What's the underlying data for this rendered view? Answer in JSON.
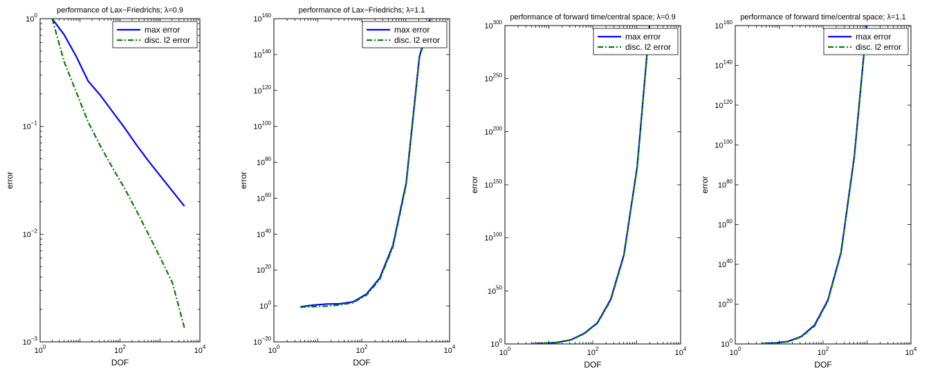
{
  "colors": {
    "max_error": "#0000ff",
    "l2_error": "#007f00",
    "axes": "#000000",
    "background": "#ffffff"
  },
  "chart_data": [
    {
      "type": "line",
      "title_prefix": "performance of Lax−Friedrichs; ",
      "title_suffix": "λ=0.9",
      "xlabel": "DOF",
      "ylabel": "error",
      "xscale": "log",
      "yscale": "log",
      "xlim": [
        1,
        10000
      ],
      "ylim_exp": [
        -3,
        0
      ],
      "x_ticks": [
        {
          "exp": 0,
          "base": "10",
          "sup": "0"
        },
        {
          "exp": 2,
          "base": "10",
          "sup": "2"
        },
        {
          "exp": 4,
          "base": "10",
          "sup": "4"
        }
      ],
      "y_ticks": [
        {
          "exp": -3,
          "base": "10",
          "sup": "−3"
        },
        {
          "exp": -2,
          "base": "10",
          "sup": "−2"
        },
        {
          "exp": -1,
          "base": "10",
          "sup": "−1"
        },
        {
          "exp": 0,
          "base": "10",
          "sup": "0"
        }
      ],
      "legend": "top-right",
      "grid": false,
      "series": [
        {
          "name": "max error",
          "style": "solid",
          "x": [
            2,
            4,
            8,
            16,
            32,
            64,
            128,
            256,
            512,
            1024,
            2048,
            4096
          ],
          "y_exp": [
            0,
            -0.15,
            -0.35,
            -0.58,
            -0.71,
            -0.86,
            -1.01,
            -1.17,
            -1.32,
            -1.46,
            -1.6,
            -1.74
          ]
        },
        {
          "name": "disc. l2 error",
          "style": "dashdot",
          "x": [
            2,
            4,
            8,
            16,
            32,
            64,
            128,
            256,
            512,
            1024,
            2048,
            4096
          ],
          "y_exp": [
            0,
            -0.4,
            -0.68,
            -0.96,
            -1.18,
            -1.38,
            -1.57,
            -1.78,
            -2.0,
            -2.22,
            -2.45,
            -2.87
          ]
        }
      ]
    },
    {
      "type": "line",
      "title_prefix": "performance of Lax−Friedrichs; ",
      "title_suffix": "λ=1.1",
      "xlabel": "DOF",
      "ylabel": "error",
      "xscale": "log",
      "yscale": "log",
      "xlim": [
        1,
        10000
      ],
      "ylim_exp": [
        -20,
        160
      ],
      "x_ticks": [
        {
          "exp": 0,
          "base": "10",
          "sup": "0"
        },
        {
          "exp": 2,
          "base": "10",
          "sup": "2"
        },
        {
          "exp": 4,
          "base": "10",
          "sup": "4"
        }
      ],
      "y_ticks": [
        {
          "exp": -20,
          "base": "10",
          "sup": "−20"
        },
        {
          "exp": 0,
          "base": "10",
          "sup": "0"
        },
        {
          "exp": 20,
          "base": "10",
          "sup": "20"
        },
        {
          "exp": 40,
          "base": "10",
          "sup": "40"
        },
        {
          "exp": 60,
          "base": "10",
          "sup": "60"
        },
        {
          "exp": 80,
          "base": "10",
          "sup": "80"
        },
        {
          "exp": 100,
          "base": "10",
          "sup": "100"
        },
        {
          "exp": 120,
          "base": "10",
          "sup": "120"
        },
        {
          "exp": 140,
          "base": "10",
          "sup": "140"
        },
        {
          "exp": 160,
          "base": "10",
          "sup": "160"
        }
      ],
      "legend": "top-right",
      "grid": false,
      "series": [
        {
          "name": "max error",
          "style": "solid",
          "x": [
            4,
            8,
            16,
            32,
            64,
            128,
            256,
            512,
            1024,
            2048,
            4096
          ],
          "y_exp": [
            -0.5,
            0.5,
            1.1,
            1.2,
            2.3,
            6.6,
            15.5,
            33.7,
            68.4,
            138.8,
            165
          ]
        },
        {
          "name": "disc. l2 error",
          "style": "dashdot",
          "x": [
            4,
            8,
            16,
            32,
            64,
            128,
            256,
            512,
            1024,
            2048,
            4096
          ],
          "y_exp": [
            -0.7,
            -0.4,
            -0.1,
            0.6,
            1.8,
            6.0,
            14.6,
            32.7,
            67.4,
            137.8,
            165
          ]
        }
      ]
    },
    {
      "type": "line",
      "title_prefix": "performance of forward time/central space; ",
      "title_suffix": "λ=0.9",
      "xlabel": "DOF",
      "ylabel": "error",
      "xscale": "log",
      "yscale": "log",
      "xlim": [
        1,
        10000
      ],
      "ylim_exp": [
        0,
        300
      ],
      "x_ticks": [
        {
          "exp": 0,
          "base": "10",
          "sup": "0"
        },
        {
          "exp": 2,
          "base": "10",
          "sup": "2"
        },
        {
          "exp": 4,
          "base": "10",
          "sup": "4"
        }
      ],
      "y_ticks": [
        {
          "exp": 0,
          "base": "10",
          "sup": "0"
        },
        {
          "exp": 50,
          "base": "10",
          "sup": "50"
        },
        {
          "exp": 100,
          "base": "10",
          "sup": "100"
        },
        {
          "exp": 150,
          "base": "10",
          "sup": "150"
        },
        {
          "exp": 200,
          "base": "10",
          "sup": "200"
        },
        {
          "exp": 250,
          "base": "10",
          "sup": "250"
        },
        {
          "exp": 300,
          "base": "10",
          "sup": "300"
        }
      ],
      "legend": "top-right",
      "grid": false,
      "series": [
        {
          "name": "max error",
          "style": "solid",
          "x": [
            4,
            8,
            16,
            32,
            64,
            128,
            256,
            512,
            1024,
            2048
          ],
          "y_exp": [
            0.3,
            0.6,
            1.5,
            4,
            10,
            20,
            42,
            84,
            167,
            310
          ]
        },
        {
          "name": "disc. l2 error",
          "style": "dashdot",
          "x": [
            4,
            8,
            16,
            32,
            64,
            128,
            256,
            512,
            1024,
            2048
          ],
          "y_exp": [
            0.2,
            0.5,
            1.3,
            3.7,
            9.5,
            19.5,
            41,
            83,
            166,
            310
          ]
        }
      ]
    },
    {
      "type": "line",
      "title_prefix": "performance of forward time/central space; ",
      "title_suffix": "λ=1.1",
      "xlabel": "DOF",
      "ylabel": "error",
      "xscale": "log",
      "yscale": "log",
      "xlim": [
        1,
        10000
      ],
      "ylim_exp": [
        0,
        160
      ],
      "x_ticks": [
        {
          "exp": 0,
          "base": "10",
          "sup": "0"
        },
        {
          "exp": 2,
          "base": "10",
          "sup": "2"
        },
        {
          "exp": 4,
          "base": "10",
          "sup": "4"
        }
      ],
      "y_ticks": [
        {
          "exp": 0,
          "base": "10",
          "sup": "0"
        },
        {
          "exp": 20,
          "base": "10",
          "sup": "20"
        },
        {
          "exp": 40,
          "base": "10",
          "sup": "40"
        },
        {
          "exp": 60,
          "base": "10",
          "sup": "60"
        },
        {
          "exp": 80,
          "base": "10",
          "sup": "80"
        },
        {
          "exp": 100,
          "base": "10",
          "sup": "100"
        },
        {
          "exp": 120,
          "base": "10",
          "sup": "120"
        },
        {
          "exp": 140,
          "base": "10",
          "sup": "140"
        },
        {
          "exp": 160,
          "base": "10",
          "sup": "160"
        }
      ],
      "legend": "top-right",
      "grid": false,
      "series": [
        {
          "name": "max error",
          "style": "solid",
          "x": [
            4,
            8,
            16,
            32,
            64,
            128,
            256,
            512,
            1024
          ],
          "y_exp": [
            0.2,
            0.5,
            1.3,
            3.8,
            9.5,
            22,
            46,
            94,
            165
          ]
        },
        {
          "name": "disc. l2 error",
          "style": "dashdot",
          "x": [
            4,
            8,
            16,
            32,
            64,
            128,
            256,
            512,
            1024
          ],
          "y_exp": [
            0.1,
            0.4,
            1.1,
            3.5,
            9.0,
            21.5,
            45.5,
            93.5,
            165
          ]
        }
      ]
    }
  ]
}
